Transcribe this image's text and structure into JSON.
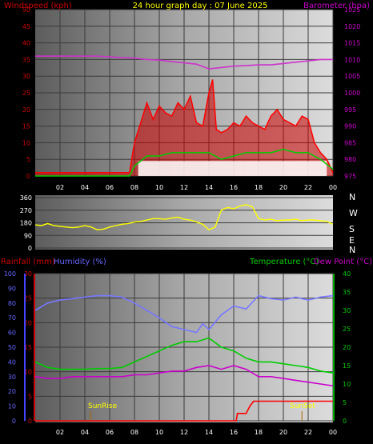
{
  "chart_data": [
    {
      "type": "line",
      "title": "24 hour graph day : 07 June 2025",
      "ylabel": "Windspeed (kph)",
      "y2label": "Barometer (hpa)",
      "ylim": [
        0,
        50
      ],
      "y2lim": [
        975,
        1025
      ],
      "left_ticks": [
        "0",
        "5",
        "10",
        "15",
        "20",
        "25",
        "30",
        "35",
        "40",
        "45",
        "50"
      ],
      "right_ticks": [
        "975",
        "980",
        "985",
        "990",
        "995",
        "1000",
        "1005",
        "1010",
        "1015",
        "1020",
        "1025"
      ],
      "x_ticks": [
        "02",
        "04",
        "06",
        "08",
        "10",
        "12",
        "14",
        "16",
        "18",
        "20",
        "22",
        "00"
      ],
      "colors": {
        "wind": "#ff0000",
        "gust_area": "#ff0000",
        "avg": "#00cc00",
        "calm": "#ffffff",
        "baro": "#cc33cc",
        "axis_left": "#cc0000",
        "axis_right": "#cc00cc",
        "title": "#ffff00"
      },
      "series": [
        {
          "name": "Barometer",
          "axis": "right",
          "x": [
            0,
            1,
            2,
            3,
            4,
            5,
            6,
            7,
            8,
            9,
            10,
            11,
            12,
            13,
            14,
            15,
            16,
            17,
            18,
            19,
            20,
            21,
            22,
            23,
            24
          ],
          "values": [
            1011,
            1011,
            1011,
            1011,
            1011,
            1011,
            1010.8,
            1010.6,
            1010.4,
            1010,
            1009.8,
            1009.4,
            1009,
            1008.6,
            1007.2,
            1007.6,
            1008,
            1008.2,
            1008.4,
            1008.4,
            1008.8,
            1009.2,
            1009.6,
            1010,
            1010
          ]
        },
        {
          "name": "Gust",
          "axis": "left",
          "x": [
            0,
            7.6,
            8.0,
            8.5,
            9,
            9.5,
            10,
            10.5,
            11,
            11.5,
            12,
            12.5,
            13,
            13.5,
            14,
            14.3,
            14.6,
            15,
            15.5,
            16,
            16.5,
            17,
            17.5,
            18,
            18.5,
            19,
            19.5,
            20,
            20.5,
            21,
            21.5,
            22,
            22.5,
            23,
            23.5,
            24
          ],
          "values": [
            1,
            1,
            10,
            16,
            22,
            17,
            21,
            19,
            18,
            22,
            20,
            24,
            16,
            15,
            25,
            29,
            14,
            13,
            14,
            16,
            15,
            18,
            16,
            15,
            14,
            18,
            20,
            17,
            16,
            15,
            18,
            17,
            10,
            7,
            5,
            1
          ]
        },
        {
          "name": "Average",
          "axis": "left",
          "x": [
            0,
            7.6,
            8,
            9,
            10,
            11,
            12,
            13,
            14,
            15,
            16,
            17,
            18,
            19,
            20,
            21,
            22,
            23,
            24
          ],
          "values": [
            0,
            0,
            3,
            6,
            6,
            7,
            7,
            7,
            7,
            5,
            6,
            7,
            7,
            7,
            8,
            7,
            7,
            5,
            2
          ]
        }
      ]
    },
    {
      "type": "line",
      "title": "",
      "ylabel": "",
      "left_ticks": [
        "360",
        "270",
        "180",
        "90",
        "0"
      ],
      "compass": [
        "N",
        "W",
        "S",
        "E",
        "N"
      ],
      "ylim": [
        0,
        360
      ],
      "series": [
        {
          "name": "Wind Direction",
          "x": [
            0,
            0.5,
            1,
            1.5,
            2,
            2.5,
            3,
            3.5,
            4,
            4.5,
            5,
            5.5,
            6,
            6.5,
            7,
            7.5,
            8,
            8.5,
            9,
            9.5,
            10,
            10.5,
            11,
            11.5,
            12,
            12.5,
            13,
            13.5,
            14,
            14.5,
            15,
            15.5,
            16,
            16.5,
            17,
            17.5,
            18,
            18.5,
            19,
            19.5,
            20,
            20.5,
            21,
            21.5,
            22,
            22.5,
            23,
            23.5,
            24
          ],
          "values": [
            165,
            160,
            175,
            160,
            155,
            150,
            145,
            150,
            160,
            150,
            130,
            135,
            150,
            160,
            170,
            175,
            185,
            190,
            200,
            210,
            210,
            205,
            215,
            220,
            205,
            200,
            185,
            170,
            130,
            150,
            270,
            290,
            280,
            300,
            310,
            295,
            210,
            200,
            205,
            195,
            200,
            200,
            205,
            195,
            200,
            200,
            195,
            190,
            170
          ]
        }
      ]
    },
    {
      "type": "line",
      "labels": {
        "rain": "Rainfall (mm)",
        "humidity": "Humidity (%)",
        "temp": "Temperature (°C)",
        "dew": "Dew Point (°C)"
      },
      "left_ticks_hum": [
        "0",
        "10",
        "20",
        "30",
        "40",
        "50",
        "60",
        "70",
        "80",
        "90",
        "100"
      ],
      "left_ticks_rain": [
        "0",
        "5",
        "10",
        "15",
        "20",
        "25",
        "30"
      ],
      "right_ticks": [
        "0",
        "5",
        "10",
        "15",
        "20",
        "25",
        "30",
        "35",
        "40"
      ],
      "x_ticks": [
        "02",
        "04",
        "06",
        "08",
        "10",
        "12",
        "14",
        "16",
        "18",
        "20",
        "22",
        "00"
      ],
      "annotations": [
        {
          "text": "SunRise",
          "x": 4.45
        },
        {
          "text": "SunSet",
          "x": 21.5
        }
      ],
      "series": [
        {
          "name": "Humidity",
          "axis": "hum",
          "x": [
            0,
            1,
            2,
            3,
            4,
            5,
            6,
            7,
            8,
            9,
            10,
            11,
            12,
            13,
            13.5,
            14,
            15,
            16,
            17,
            18,
            19,
            20,
            21,
            22,
            23,
            24
          ],
          "values": [
            75,
            80,
            82,
            83,
            84,
            85,
            85,
            84,
            80,
            75,
            70,
            64,
            62,
            60,
            66,
            62,
            72,
            78,
            76,
            85,
            83,
            82,
            84,
            82,
            84,
            85
          ]
        },
        {
          "name": "Temperature",
          "axis": "temp",
          "x": [
            0,
            1,
            2,
            3,
            4,
            5,
            6,
            7,
            8,
            9,
            10,
            11,
            12,
            13,
            14,
            15,
            16,
            17,
            18,
            19,
            20,
            21,
            22,
            23,
            24
          ],
          "values": [
            16,
            14.5,
            14,
            14,
            14,
            14.2,
            14.2,
            14.5,
            16,
            17.5,
            19,
            20.5,
            21.5,
            21.5,
            22.5,
            20,
            19,
            17,
            16,
            16,
            15.5,
            15,
            14.5,
            13.5,
            13
          ]
        },
        {
          "name": "Dew Point",
          "axis": "temp",
          "x": [
            0,
            1,
            2,
            3,
            4,
            5,
            6,
            7,
            8,
            9,
            10,
            11,
            12,
            13,
            14,
            15,
            16,
            17,
            18,
            19,
            20,
            21,
            22,
            23,
            24
          ],
          "values": [
            12,
            11.5,
            11.5,
            12,
            12,
            12,
            12,
            12,
            12.5,
            12.5,
            13,
            13.5,
            13.5,
            14.5,
            15,
            14,
            15,
            14,
            12,
            12,
            11.5,
            11,
            10.5,
            10,
            9.5
          ]
        },
        {
          "name": "Rainfall",
          "axis": "rain",
          "x": [
            0,
            16.2,
            16.3,
            17,
            17.3,
            17.6,
            24
          ],
          "values": [
            0,
            0,
            1.5,
            1.5,
            3,
            4,
            4
          ]
        }
      ]
    }
  ]
}
